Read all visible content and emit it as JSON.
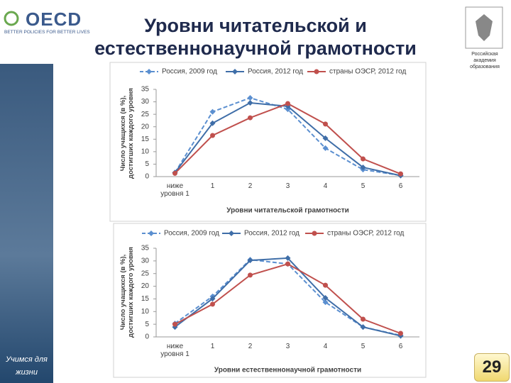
{
  "header": {
    "logo": "OECD",
    "logo_tagline": "BETTER POLICIES FOR BETTER LIVES",
    "title": "Уровни читательской и естественнонаучной грамотности",
    "org": "Российская академия образования"
  },
  "sidebar": {
    "motto": "Учимся для жизни"
  },
  "page_number": 29,
  "chart_data": [
    {
      "type": "line",
      "ylabel": "Число учащихся (в %), достигших каждого уровня",
      "xlabel": "Уровни читательской грамотности",
      "categories": [
        "ниже уровня 1",
        "1",
        "2",
        "3",
        "4",
        "5",
        "6"
      ],
      "ylim": [
        0,
        35
      ],
      "yticks": [
        0,
        5,
        10,
        15,
        20,
        25,
        30,
        35
      ],
      "legend": "top",
      "series": [
        {
          "name": "Россия, 2009 год",
          "color": "#5b8fd0",
          "dashed": true,
          "marker": "diamond",
          "values": [
            1.6,
            26,
            31.6,
            27,
            11.4,
            2.8,
            0.5
          ]
        },
        {
          "name": "Россия, 2012 год",
          "color": "#3f6ea8",
          "dashed": false,
          "marker": "diamond",
          "values": [
            1.6,
            21.4,
            29.6,
            28.2,
            15.4,
            3.7,
            0.4
          ]
        },
        {
          "name": "страны ОЭСР, 2012 год",
          "color": "#c0504d",
          "dashed": false,
          "marker": "circle",
          "values": [
            1.3,
            16.5,
            23.6,
            29.3,
            21.1,
            7.1,
            1.1
          ]
        }
      ]
    },
    {
      "type": "line",
      "ylabel": "Число учащихся (в %), достигших каждого уровня",
      "xlabel": "Уровни естественнонаучной грамотности",
      "categories": [
        "ниже уровня 1",
        "1",
        "2",
        "3",
        "4",
        "5",
        "6"
      ],
      "ylim": [
        0,
        35
      ],
      "yticks": [
        0,
        5,
        10,
        15,
        20,
        25,
        30,
        35
      ],
      "legend": "top",
      "series": [
        {
          "name": "Россия, 2009 год",
          "color": "#5b8fd0",
          "dashed": true,
          "marker": "diamond",
          "values": [
            5.3,
            16,
            30.5,
            28.8,
            13.7,
            3.9,
            0.6
          ]
        },
        {
          "name": "Россия, 2012 год",
          "color": "#3f6ea8",
          "dashed": false,
          "marker": "diamond",
          "values": [
            3.9,
            15.1,
            30.2,
            31.1,
            15.4,
            3.9,
            0.4
          ]
        },
        {
          "name": "страны ОЭСР, 2012 год",
          "color": "#c0504d",
          "dashed": false,
          "marker": "circle",
          "values": [
            5,
            12.9,
            24.4,
            28.8,
            20.4,
            7,
            1.4
          ]
        }
      ]
    }
  ]
}
